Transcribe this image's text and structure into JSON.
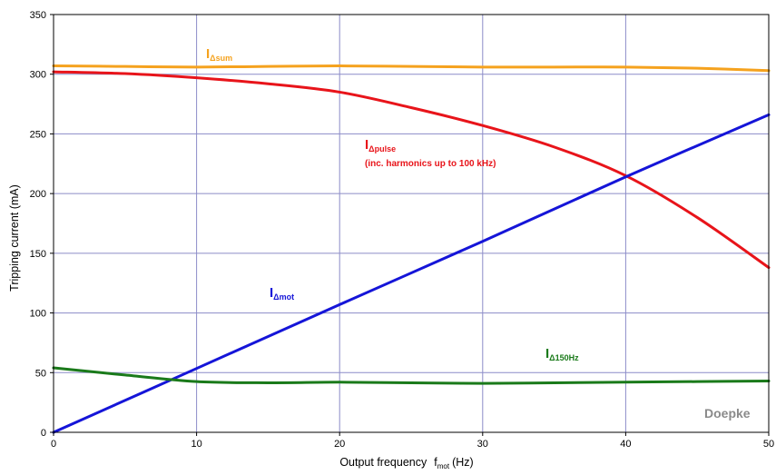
{
  "chart_data": {
    "type": "line",
    "xlabel": "Output frequency",
    "xlabel_symbol": "f",
    "xlabel_symbol_sub": "mot",
    "xlabel_unit": "(Hz)",
    "ylabel": "Tripping current (mA)",
    "xlim": [
      0,
      50
    ],
    "ylim": [
      0,
      350
    ],
    "xticks": [
      0,
      10,
      20,
      30,
      40,
      50
    ],
    "yticks": [
      0,
      50,
      100,
      150,
      200,
      250,
      300,
      350
    ],
    "grid": true,
    "watermark": "Doepke",
    "series": [
      {
        "name": "IΔsum",
        "label_main": "I",
        "label_sub": "Δsum",
        "color": "#f5a21e",
        "points": [
          [
            0,
            307
          ],
          [
            5,
            306.5
          ],
          [
            10,
            306
          ],
          [
            15,
            306.5
          ],
          [
            20,
            307
          ],
          [
            25,
            306.5
          ],
          [
            30,
            306
          ],
          [
            35,
            306
          ],
          [
            40,
            306
          ],
          [
            45,
            305
          ],
          [
            50,
            303
          ]
        ]
      },
      {
        "name": "IΔpulse",
        "label_main": "I",
        "label_sub": "Δpulse",
        "label_note": "(inc. harmonics up to 100 kHz)",
        "color": "#e8141a",
        "points": [
          [
            0,
            302
          ],
          [
            5,
            300.5
          ],
          [
            10,
            297
          ],
          [
            15,
            292
          ],
          [
            20,
            285
          ],
          [
            25,
            272
          ],
          [
            30,
            257
          ],
          [
            35,
            239
          ],
          [
            40,
            215
          ],
          [
            45,
            180
          ],
          [
            50,
            138
          ]
        ]
      },
      {
        "name": "IΔmot",
        "label_main": "I",
        "label_sub": "Δmot",
        "color": "#1515d8",
        "points": [
          [
            0,
            0
          ],
          [
            10,
            53.5
          ],
          [
            20,
            107
          ],
          [
            30,
            160
          ],
          [
            40,
            214
          ],
          [
            50,
            266
          ]
        ]
      },
      {
        "name": "IΔ150Hz",
        "label_main": "I",
        "label_sub": "Δ150Hz",
        "color": "#1a7a1a",
        "points": [
          [
            0,
            54
          ],
          [
            5,
            48
          ],
          [
            10,
            42.5
          ],
          [
            15,
            41.5
          ],
          [
            20,
            42
          ],
          [
            25,
            41.5
          ],
          [
            30,
            41
          ],
          [
            35,
            41.5
          ],
          [
            40,
            42
          ],
          [
            45,
            42.5
          ],
          [
            50,
            43
          ]
        ]
      }
    ]
  }
}
